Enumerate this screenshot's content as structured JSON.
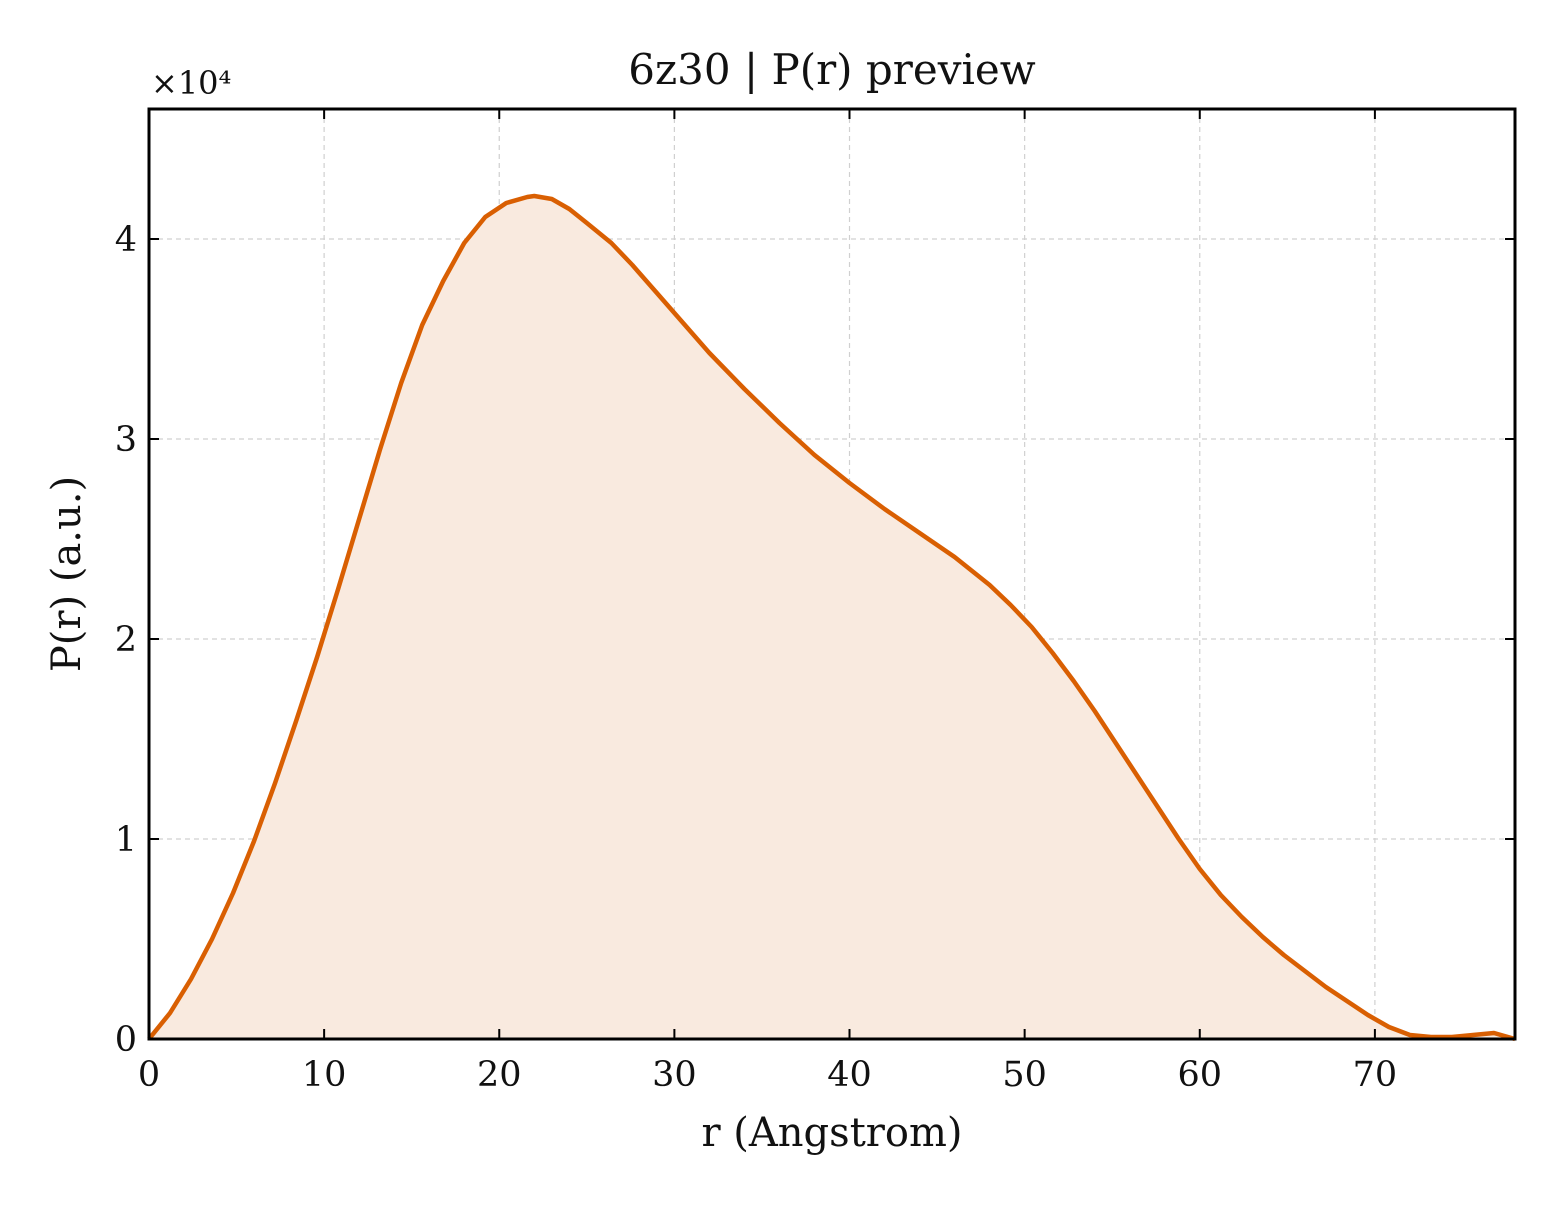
{
  "chart_data": {
    "type": "area",
    "title": "6z30 | P(r) preview",
    "xlabel": "r (Angstrom)",
    "ylabel": "P(r) (a.u.)",
    "y_offset_label": "×10⁴",
    "y_scale": 10000,
    "xlim": [
      0,
      78
    ],
    "ylim": [
      0,
      46500
    ],
    "x_ticks": [
      0,
      10,
      20,
      30,
      40,
      50,
      60,
      70
    ],
    "y_ticks": [
      0,
      10000,
      20000,
      30000,
      40000
    ],
    "y_tick_labels": [
      "0",
      "1",
      "2",
      "3",
      "4"
    ],
    "grid": true,
    "legend": "none",
    "line_color": "#d95f02",
    "fill_color": "#f9eadf",
    "series": [
      {
        "x": [
          0,
          1.2,
          2.4,
          3.6,
          4.8,
          6,
          7.2,
          8.4,
          9.6,
          10.8,
          12,
          13.2,
          14.4,
          15.6,
          16.8,
          18,
          19.2,
          20.4,
          21.6,
          22,
          23,
          24,
          25,
          26.4,
          27.6,
          28.8,
          30,
          32,
          34,
          36,
          38,
          40,
          42,
          44,
          46,
          48,
          49.2,
          50.4,
          51.6,
          52.8,
          54,
          55.2,
          56.4,
          57.6,
          58.8,
          60,
          61.2,
          62.4,
          63.6,
          64.8,
          66,
          67.2,
          68.4,
          69.6,
          70.8,
          72,
          73.2,
          74.4,
          75.6,
          76.8,
          78
        ],
        "y": [
          0,
          1300,
          3000,
          5000,
          7300,
          9900,
          12800,
          15900,
          19100,
          22500,
          26000,
          29500,
          32800,
          35700,
          37900,
          39800,
          41100,
          41800,
          42100,
          42150,
          42000,
          41500,
          40800,
          39800,
          38700,
          37500,
          36300,
          34300,
          32500,
          30800,
          29200,
          27800,
          26500,
          25300,
          24100,
          22700,
          21700,
          20600,
          19300,
          17900,
          16400,
          14800,
          13200,
          11600,
          10000,
          8500,
          7200,
          6100,
          5100,
          4200,
          3400,
          2600,
          1900,
          1200,
          600,
          200,
          100,
          100,
          200,
          300,
          0
        ]
      }
    ]
  }
}
